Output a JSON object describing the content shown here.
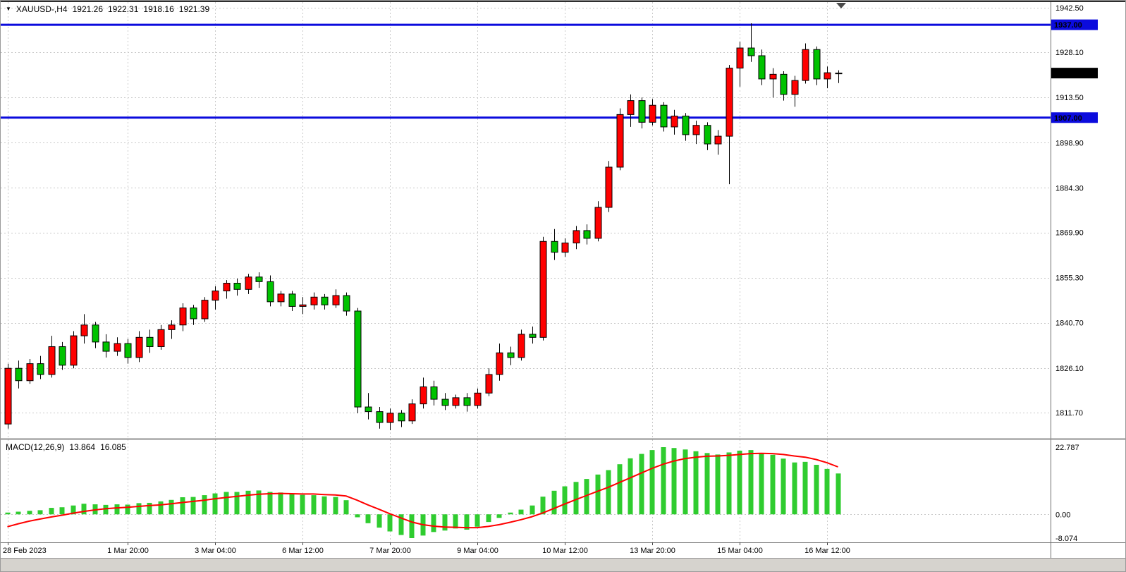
{
  "legend": {
    "marker": "▼",
    "symbol_timeframe": "XAUUSD-,H4",
    "open": "1921.26",
    "high": "1922.31",
    "low": "1918.16",
    "close": "1921.39"
  },
  "macd_legend": {
    "label": "MACD(12,26,9)",
    "macd_value": "13.864",
    "signal_value": "16.085"
  },
  "colors": {
    "background": "#ffffff",
    "grid": "#c9c9c9",
    "bull_candle": "#ff0000",
    "bear_candle": "#00c300",
    "wick": "#000000",
    "level_line": "#0b0bdd",
    "macd_histogram": "#2fcc2f",
    "macd_signal": "#ff0000",
    "axis_text": "#000000",
    "current_price_tag": "#000000"
  },
  "chart_data": {
    "type": "candlestick",
    "title": "XAUUSD-,H4",
    "symbol": "XAUUSD-",
    "timeframe": "H4",
    "last_ohlc": {
      "open": 1921.26,
      "high": 1922.31,
      "low": 1918.16,
      "close": 1921.39
    },
    "current_price": 1921.39,
    "current_price_label": "1921.39",
    "levels": [
      {
        "label": "1937.00",
        "price": 1937.0
      },
      {
        "label": "1907.00",
        "price": 1907.0
      }
    ],
    "price_axis": {
      "tick_labels": [
        "1942.50",
        "1928.10",
        "1913.50",
        "1898.90",
        "1884.30",
        "1869.90",
        "1855.30",
        "1840.70",
        "1826.10",
        "1811.70"
      ]
    },
    "time_axis": {
      "labels": [
        {
          "text": "28 Feb 2023",
          "index": 0
        },
        {
          "text": "1 Mar 20:00",
          "index": 11
        },
        {
          "text": "3 Mar 04:00",
          "index": 19
        },
        {
          "text": "6 Mar 12:00",
          "index": 27
        },
        {
          "text": "7 Mar 20:00",
          "index": 35
        },
        {
          "text": "9 Mar 04:00",
          "index": 43
        },
        {
          "text": "10 Mar 12:00",
          "index": 51
        },
        {
          "text": "13 Mar 20:00",
          "index": 59
        },
        {
          "text": "15 Mar 04:00",
          "index": 67
        },
        {
          "text": "16 Mar 12:00",
          "index": 75
        }
      ]
    },
    "candles": [
      [
        1808.0,
        1827.5,
        1806.5,
        1826.0
      ],
      [
        1826.0,
        1828.5,
        1819.5,
        1822.0
      ],
      [
        1822.0,
        1829.0,
        1821.0,
        1827.5
      ],
      [
        1827.5,
        1830.0,
        1822.5,
        1824.0
      ],
      [
        1824.0,
        1836.5,
        1823.0,
        1833.0
      ],
      [
        1833.0,
        1834.5,
        1825.5,
        1827.0
      ],
      [
        1827.0,
        1838.0,
        1826.0,
        1836.5
      ],
      [
        1836.5,
        1843.5,
        1834.0,
        1840.0
      ],
      [
        1840.0,
        1841.0,
        1832.5,
        1834.5
      ],
      [
        1834.5,
        1837.0,
        1829.5,
        1831.5
      ],
      [
        1831.5,
        1836.0,
        1830.0,
        1834.0
      ],
      [
        1834.0,
        1835.5,
        1827.5,
        1829.5
      ],
      [
        1829.5,
        1838.0,
        1828.0,
        1836.0
      ],
      [
        1836.0,
        1838.5,
        1831.0,
        1833.0
      ],
      [
        1833.0,
        1840.0,
        1832.0,
        1838.5
      ],
      [
        1838.5,
        1841.5,
        1835.5,
        1840.0
      ],
      [
        1840.0,
        1847.0,
        1838.0,
        1845.5
      ],
      [
        1845.5,
        1846.5,
        1840.0,
        1842.0
      ],
      [
        1842.0,
        1849.0,
        1841.0,
        1848.0
      ],
      [
        1848.0,
        1852.5,
        1845.0,
        1851.0
      ],
      [
        1851.0,
        1854.5,
        1848.5,
        1853.5
      ],
      [
        1853.5,
        1855.0,
        1849.5,
        1851.5
      ],
      [
        1851.5,
        1856.5,
        1850.0,
        1855.5
      ],
      [
        1855.5,
        1857.0,
        1852.0,
        1854.0
      ],
      [
        1854.0,
        1856.0,
        1846.0,
        1847.5
      ],
      [
        1847.5,
        1851.0,
        1846.0,
        1850.0
      ],
      [
        1850.0,
        1851.0,
        1844.5,
        1846.0
      ],
      [
        1846.0,
        1849.0,
        1843.5,
        1846.5
      ],
      [
        1846.5,
        1850.5,
        1845.0,
        1849.0
      ],
      [
        1849.0,
        1850.0,
        1845.0,
        1846.5
      ],
      [
        1846.5,
        1851.5,
        1845.5,
        1849.5
      ],
      [
        1849.5,
        1850.5,
        1843.0,
        1844.5
      ],
      [
        1844.5,
        1845.5,
        1811.5,
        1813.5
      ],
      [
        1813.5,
        1818.0,
        1809.5,
        1812.0
      ],
      [
        1812.0,
        1813.5,
        1806.5,
        1808.5
      ],
      [
        1808.5,
        1813.0,
        1806.0,
        1811.5
      ],
      [
        1811.5,
        1812.5,
        1807.0,
        1809.0
      ],
      [
        1809.0,
        1816.0,
        1808.0,
        1814.5
      ],
      [
        1814.5,
        1823.0,
        1813.0,
        1820.0
      ],
      [
        1820.0,
        1822.0,
        1814.0,
        1816.0
      ],
      [
        1816.0,
        1818.0,
        1812.5,
        1814.0
      ],
      [
        1814.0,
        1817.5,
        1813.0,
        1816.5
      ],
      [
        1816.5,
        1818.0,
        1812.0,
        1814.0
      ],
      [
        1814.0,
        1819.5,
        1813.0,
        1818.0
      ],
      [
        1818.0,
        1826.0,
        1817.0,
        1824.0
      ],
      [
        1824.0,
        1834.0,
        1822.0,
        1831.0
      ],
      [
        1831.0,
        1833.0,
        1827.0,
        1829.5
      ],
      [
        1829.5,
        1838.5,
        1828.5,
        1837.0
      ],
      [
        1837.0,
        1839.5,
        1834.0,
        1836.0
      ],
      [
        1836.0,
        1868.5,
        1835.0,
        1867.0
      ],
      [
        1867.0,
        1871.0,
        1861.0,
        1863.5
      ],
      [
        1863.5,
        1868.0,
        1862.0,
        1866.5
      ],
      [
        1866.5,
        1872.0,
        1864.5,
        1870.5
      ],
      [
        1870.5,
        1872.5,
        1866.0,
        1868.0
      ],
      [
        1868.0,
        1880.0,
        1867.0,
        1878.0
      ],
      [
        1878.0,
        1893.0,
        1876.5,
        1891.0
      ],
      [
        1891.0,
        1910.0,
        1890.0,
        1908.0
      ],
      [
        1908.0,
        1914.5,
        1904.0,
        1912.5
      ],
      [
        1912.5,
        1913.5,
        1903.5,
        1905.5
      ],
      [
        1905.5,
        1913.0,
        1904.5,
        1911.0
      ],
      [
        1911.0,
        1912.0,
        1902.5,
        1904.0
      ],
      [
        1904.0,
        1909.5,
        1901.5,
        1907.5
      ],
      [
        1907.5,
        1908.5,
        1899.5,
        1901.5
      ],
      [
        1901.5,
        1906.0,
        1898.5,
        1904.5
      ],
      [
        1904.5,
        1905.5,
        1896.5,
        1898.5
      ],
      [
        1898.5,
        1903.0,
        1895.0,
        1901.0
      ],
      [
        1901.0,
        1924.0,
        1885.5,
        1923.0
      ],
      [
        1923.0,
        1931.5,
        1917.0,
        1929.5
      ],
      [
        1929.5,
        1937.5,
        1925.0,
        1927.0
      ],
      [
        1927.0,
        1929.0,
        1917.5,
        1919.5
      ],
      [
        1919.5,
        1923.0,
        1913.5,
        1921.0
      ],
      [
        1921.0,
        1922.0,
        1912.5,
        1914.5
      ],
      [
        1914.5,
        1920.5,
        1910.5,
        1919.0
      ],
      [
        1919.0,
        1931.0,
        1918.0,
        1929.0
      ],
      [
        1929.0,
        1930.0,
        1917.5,
        1919.5
      ],
      [
        1919.5,
        1923.5,
        1916.5,
        1921.5
      ],
      [
        1921.26,
        1922.31,
        1918.16,
        1921.39
      ]
    ],
    "indicator": {
      "name": "MACD",
      "params": "12,26,9",
      "last_macd": 13.864,
      "last_signal": 16.085,
      "scale_max": 22.787,
      "scale_min": -8.074,
      "axis_labels": [
        {
          "text": "22.787",
          "value": 22.787
        },
        {
          "text": "0.00",
          "value": 0
        },
        {
          "text": "-8.074",
          "value": -8.074
        }
      ],
      "histogram": [
        0.6,
        0.9,
        1.2,
        1.4,
        2.2,
        2.4,
        3.0,
        3.6,
        3.4,
        3.2,
        3.4,
        3.3,
        3.8,
        3.9,
        4.4,
        4.9,
        5.8,
        5.9,
        6.5,
        7.1,
        7.6,
        7.6,
        8.0,
        8.1,
        7.6,
        7.4,
        6.9,
        6.6,
        6.5,
        6.1,
        5.9,
        4.8,
        -1.0,
        -3.0,
        -4.5,
        -5.8,
        -7.0,
        -8.074,
        -7.2,
        -6.0,
        -5.5,
        -4.8,
        -5.2,
        -4.2,
        -2.6,
        -1.2,
        0.6,
        1.6,
        3.0,
        6.0,
        8.0,
        9.5,
        11.0,
        12.0,
        13.5,
        15.0,
        17.0,
        19.0,
        20.5,
        21.8,
        22.787,
        22.5,
        22.0,
        21.4,
        20.8,
        20.3,
        21.0,
        21.6,
        21.8,
        20.8,
        20.2,
        18.9,
        17.6,
        17.8,
        16.8,
        15.4,
        13.864
      ],
      "signal": [
        -4.2,
        -3.2,
        -2.3,
        -1.6,
        -0.9,
        -0.3,
        0.4,
        1.0,
        1.5,
        1.9,
        2.2,
        2.4,
        2.7,
        3.0,
        3.2,
        3.6,
        4.0,
        4.4,
        4.8,
        5.3,
        5.7,
        6.1,
        6.5,
        6.8,
        7.0,
        7.1,
        7.0,
        6.9,
        6.9,
        6.7,
        6.6,
        6.2,
        4.8,
        3.2,
        1.7,
        0.2,
        -1.2,
        -2.6,
        -3.5,
        -4.0,
        -4.3,
        -4.4,
        -4.5,
        -4.5,
        -4.1,
        -3.5,
        -2.7,
        -1.8,
        -0.8,
        0.5,
        2.0,
        3.5,
        5.0,
        6.4,
        7.8,
        9.2,
        10.8,
        12.4,
        14.0,
        15.6,
        17.0,
        18.1,
        18.9,
        19.4,
        19.7,
        19.8,
        20.0,
        20.3,
        20.6,
        20.7,
        20.6,
        20.3,
        19.8,
        19.4,
        18.6,
        17.5,
        16.085
      ]
    }
  }
}
